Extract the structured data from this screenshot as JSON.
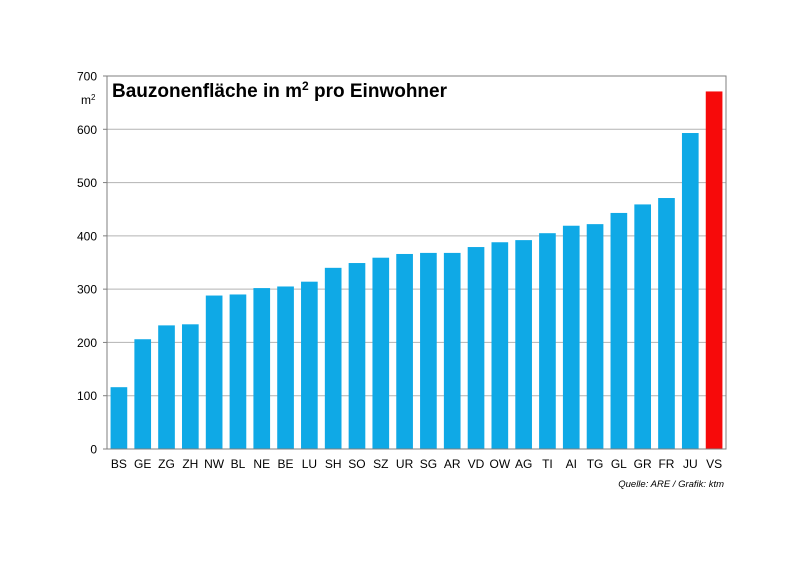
{
  "chart_data": {
    "type": "bar",
    "title": "Bauzonenfläche in m² pro Einwohner",
    "title_parts": {
      "before": "Bauzonenfläche in m",
      "sup": "2",
      "after": " pro Einwohner"
    },
    "unit": {
      "base": "m",
      "sup": "2"
    },
    "source": "Quelle: ARE / Grafik: ktm",
    "categories": [
      "BS",
      "GE",
      "ZG",
      "ZH",
      "NW",
      "BL",
      "NE",
      "BE",
      "LU",
      "SH",
      "SO",
      "SZ",
      "UR",
      "SG",
      "AR",
      "VD",
      "OW",
      "AG",
      "TI",
      "AI",
      "TG",
      "GL",
      "GR",
      "FR",
      "JU",
      "VS"
    ],
    "values": [
      116,
      206,
      232,
      234,
      288,
      290,
      302,
      305,
      314,
      340,
      349,
      359,
      366,
      368,
      368,
      379,
      388,
      392,
      405,
      419,
      422,
      443,
      459,
      471,
      593,
      671
    ],
    "highlight": "VS",
    "ylim": [
      0,
      700
    ],
    "yticks": [
      0,
      100,
      200,
      300,
      400,
      500,
      600,
      700
    ],
    "grid": true,
    "colors": {
      "bar": "#0FA9E6",
      "highlight": "#F70A0A",
      "grid": "#B3B3B3",
      "axis": "#7F7F7F"
    }
  }
}
